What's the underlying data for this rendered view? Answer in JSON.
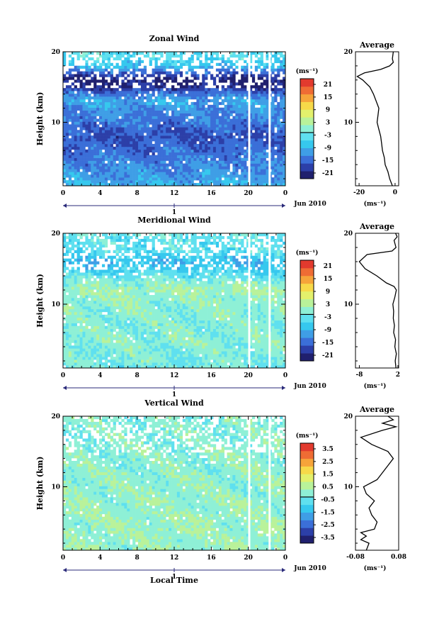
{
  "figure": {
    "date_label": "Jun 2010",
    "time_label": "Local Time"
  },
  "chart_data": [
    {
      "type": "heatmap",
      "title": "Zonal Wind",
      "ylabel": "Height (km)",
      "x_ticks": [
        "0",
        "4",
        "8",
        "12",
        "16",
        "20",
        "0"
      ],
      "y_ticks": [
        "10",
        "20"
      ],
      "xlim": [
        0,
        24
      ],
      "ylim": [
        1,
        20
      ],
      "day_label": "1",
      "date_label": "Jun 2010",
      "colorbar": {
        "unit": "(ms⁻¹)",
        "ticks": [
          "21",
          "15",
          "9",
          "3",
          "-3",
          "-9",
          "-15",
          "-21"
        ],
        "range": [
          -24,
          24
        ]
      },
      "profile_by_height": [
        {
          "h": 1,
          "v": -9
        },
        {
          "h": 2,
          "v": -11
        },
        {
          "h": 4,
          "v": -13
        },
        {
          "h": 6,
          "v": -15
        },
        {
          "h": 8,
          "v": -17
        },
        {
          "h": 10,
          "v": -14
        },
        {
          "h": 12,
          "v": -12
        },
        {
          "h": 13,
          "v": -10
        },
        {
          "h": 14,
          "v": -14
        },
        {
          "h": 15,
          "v": -20
        },
        {
          "h": 16,
          "v": -22
        },
        {
          "h": 17,
          "v": -16
        },
        {
          "h": 18,
          "v": -8
        },
        {
          "h": 19,
          "v": -5
        },
        {
          "h": 20,
          "v": -4
        }
      ],
      "average": {
        "title": "Average",
        "x_ticks": [
          "-20",
          "0"
        ],
        "xlim": [
          -22,
          2
        ],
        "xlabel": "(ms⁻¹)",
        "values": [
          {
            "h": 1,
            "v": -1.5
          },
          {
            "h": 2,
            "v": -3
          },
          {
            "h": 3,
            "v": -4
          },
          {
            "h": 4,
            "v": -5.5
          },
          {
            "h": 5,
            "v": -6
          },
          {
            "h": 6,
            "v": -7
          },
          {
            "h": 7,
            "v": -7.5
          },
          {
            "h": 8,
            "v": -8
          },
          {
            "h": 9,
            "v": -9
          },
          {
            "h": 10,
            "v": -10
          },
          {
            "h": 11,
            "v": -9.5
          },
          {
            "h": 12,
            "v": -9
          },
          {
            "h": 13,
            "v": -10.5
          },
          {
            "h": 14,
            "v": -12
          },
          {
            "h": 15,
            "v": -14
          },
          {
            "h": 16,
            "v": -18
          },
          {
            "h": 16.5,
            "v": -21
          },
          {
            "h": 17,
            "v": -17
          },
          {
            "h": 17.5,
            "v": -8
          },
          {
            "h": 18,
            "v": -3
          },
          {
            "h": 18.5,
            "v": -1
          },
          {
            "h": 19,
            "v": -1.5
          },
          {
            "h": 20,
            "v": -1
          }
        ]
      }
    },
    {
      "type": "heatmap",
      "title": "Meridional Wind",
      "ylabel": "Height (km)",
      "x_ticks": [
        "0",
        "4",
        "8",
        "12",
        "16",
        "20",
        "0"
      ],
      "y_ticks": [
        "10",
        "20"
      ],
      "xlim": [
        0,
        24
      ],
      "ylim": [
        1,
        20
      ],
      "day_label": "1",
      "date_label": "Jun 2010",
      "colorbar": {
        "unit": "(ms⁻¹)",
        "ticks": [
          "21",
          "15",
          "9",
          "3",
          "-3",
          "-9",
          "-15",
          "-21"
        ],
        "range": [
          -24,
          24
        ]
      },
      "profile_by_height": [
        {
          "h": 1,
          "v": -2
        },
        {
          "h": 3,
          "v": -1
        },
        {
          "h": 5,
          "v": 0
        },
        {
          "h": 7,
          "v": -1
        },
        {
          "h": 9,
          "v": 0
        },
        {
          "h": 11,
          "v": 1
        },
        {
          "h": 12,
          "v": 2
        },
        {
          "h": 13,
          "v": 0
        },
        {
          "h": 14,
          "v": -3
        },
        {
          "h": 15,
          "v": -7
        },
        {
          "h": 16,
          "v": -9
        },
        {
          "h": 17,
          "v": -5
        },
        {
          "h": 18,
          "v": -3
        },
        {
          "h": 19,
          "v": -4
        },
        {
          "h": 20,
          "v": -2
        }
      ],
      "average": {
        "title": "Average",
        "x_ticks": [
          "-8",
          "2"
        ],
        "xlim": [
          -9,
          2.2
        ],
        "xlabel": "(ms⁻¹)",
        "values": [
          {
            "h": 1,
            "v": 1.5
          },
          {
            "h": 2,
            "v": 1.3
          },
          {
            "h": 3,
            "v": 1.6
          },
          {
            "h": 4,
            "v": 1.2
          },
          {
            "h": 5,
            "v": 1.4
          },
          {
            "h": 6,
            "v": 0.9
          },
          {
            "h": 7,
            "v": 1.1
          },
          {
            "h": 8,
            "v": 0.8
          },
          {
            "h": 9,
            "v": 0.9
          },
          {
            "h": 10,
            "v": 0.7
          },
          {
            "h": 11,
            "v": 1.2
          },
          {
            "h": 12,
            "v": 1.6
          },
          {
            "h": 12.5,
            "v": 1.0
          },
          {
            "h": 13,
            "v": -1.0
          },
          {
            "h": 14,
            "v": -3.5
          },
          {
            "h": 15,
            "v": -6.5
          },
          {
            "h": 16,
            "v": -8.0
          },
          {
            "h": 17,
            "v": -6.0
          },
          {
            "h": 17.5,
            "v": 0.5
          },
          {
            "h": 18,
            "v": 1.5
          },
          {
            "h": 19,
            "v": 1.0
          },
          {
            "h": 19.5,
            "v": 1.8
          },
          {
            "h": 20,
            "v": 1.4
          }
        ]
      }
    },
    {
      "type": "heatmap",
      "title": "Vertical Wind",
      "ylabel": "Height (km)",
      "x_ticks": [
        "0",
        "4",
        "8",
        "12",
        "16",
        "20",
        "0"
      ],
      "y_ticks": [
        "10",
        "20"
      ],
      "xlim": [
        0,
        24
      ],
      "ylim": [
        1,
        20
      ],
      "day_label": "1",
      "date_label": "Jun 2010",
      "xlabel": "Local Time",
      "colorbar": {
        "unit": "(ms⁻¹)",
        "ticks": [
          "3.5",
          "2.5",
          "1.5",
          "0.5",
          "-0.5",
          "-1.5",
          "-2.5",
          "-3.5"
        ],
        "range": [
          -4,
          4
        ]
      },
      "profile_by_height": [
        {
          "h": 1,
          "v": 0.2
        },
        {
          "h": 5,
          "v": 0.2
        },
        {
          "h": 10,
          "v": 0.1
        },
        {
          "h": 15,
          "v": 0.0
        },
        {
          "h": 20,
          "v": -0.1
        }
      ],
      "average": {
        "title": "Average",
        "x_ticks": [
          "-0.08",
          "0.08"
        ],
        "xlim": [
          -0.08,
          0.08
        ],
        "xlabel": "(ms⁻¹)",
        "values": [
          {
            "h": 1,
            "v": -0.04
          },
          {
            "h": 2,
            "v": -0.03
          },
          {
            "h": 2.5,
            "v": -0.06
          },
          {
            "h": 3,
            "v": -0.04
          },
          {
            "h": 3.5,
            "v": -0.06
          },
          {
            "h": 4,
            "v": -0.01
          },
          {
            "h": 5,
            "v": 0.0
          },
          {
            "h": 6,
            "v": -0.02
          },
          {
            "h": 7,
            "v": -0.03
          },
          {
            "h": 8,
            "v": -0.01
          },
          {
            "h": 9,
            "v": -0.04
          },
          {
            "h": 10,
            "v": -0.05
          },
          {
            "h": 11,
            "v": 0.0
          },
          {
            "h": 12,
            "v": 0.02
          },
          {
            "h": 13,
            "v": 0.04
          },
          {
            "h": 14,
            "v": 0.06
          },
          {
            "h": 15,
            "v": 0.04
          },
          {
            "h": 16,
            "v": -0.02
          },
          {
            "h": 17,
            "v": -0.06
          },
          {
            "h": 18,
            "v": 0.02
          },
          {
            "h": 18.5,
            "v": 0.07
          },
          {
            "h": 19,
            "v": 0.02
          },
          {
            "h": 19.5,
            "v": 0.06
          },
          {
            "h": 20,
            "v": 0.04
          }
        ]
      }
    }
  ]
}
